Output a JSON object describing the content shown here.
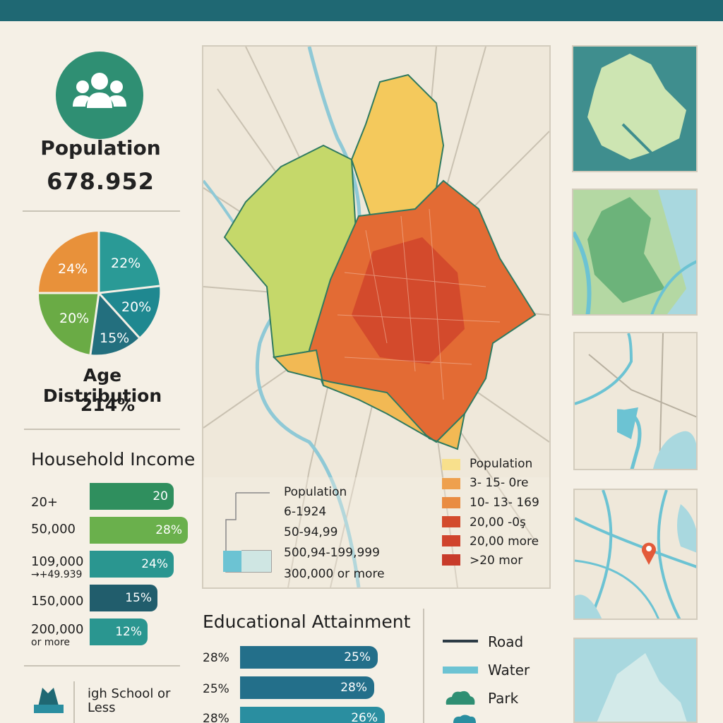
{
  "population": {
    "title": "Population",
    "value": "678.952"
  },
  "age": {
    "title": "Age Distribution",
    "value": "214%",
    "slices": [
      {
        "label": "24%",
        "color": "#e8913a"
      },
      {
        "label": "22%",
        "color": "#2a9a96"
      },
      {
        "label": "20%",
        "color": "#1f8890"
      },
      {
        "label": "15%",
        "color": "#236f7e"
      },
      {
        "label": "20%",
        "color": "#6aab45"
      }
    ]
  },
  "household_income": {
    "title": "Household Income",
    "rows": [
      {
        "category": "20+",
        "sub": "",
        "value": "20",
        "color": "#2f8f5e"
      },
      {
        "category": "50,000",
        "sub": "",
        "value": "28%",
        "color": "#6ab04c"
      },
      {
        "category": "109,000",
        "sub": "→+49.939",
        "value": "24%",
        "color": "#2a9690"
      },
      {
        "category": "150,000",
        "sub": "",
        "value": "15%",
        "color": "#215d6c"
      },
      {
        "category": "200,000",
        "sub": "or more",
        "value": "12%",
        "color": "#2a9690"
      }
    ]
  },
  "map": {
    "legend_right": {
      "title": "Population",
      "items": [
        {
          "label": "3- 15- 0re",
          "color": "#f8e08c"
        },
        {
          "label": "10- 13- 169",
          "color": "#eea04e"
        },
        {
          "label": "20,00 -0ş",
          "color": "#e57a3a"
        },
        {
          "label": "20,00 more",
          "color": "#d34a2c"
        },
        {
          "label": ">20 mor",
          "color": "#c83b2a"
        }
      ]
    },
    "legend_left": {
      "title": "Population",
      "items": [
        "6-1924",
        "50-94,99",
        "500,94-199,999",
        "300,000 or more"
      ]
    }
  },
  "education": {
    "title": "Educational Attainment",
    "rows": [
      {
        "label": "28%",
        "value": "25%",
        "fill": 0.78,
        "color": "#236f8a"
      },
      {
        "label": "25%",
        "value": "28%",
        "fill": 0.76,
        "color": "#236f8a"
      },
      {
        "label": "28%",
        "value": "26%",
        "fill": 0.82,
        "color": "#2a8ea0"
      }
    ]
  },
  "map_key": [
    {
      "label": "Road"
    },
    {
      "label": "Water"
    },
    {
      "label": "Park"
    }
  ],
  "bottom_left": {
    "label_line1": "igh School or",
    "label_line2": "Less"
  }
}
